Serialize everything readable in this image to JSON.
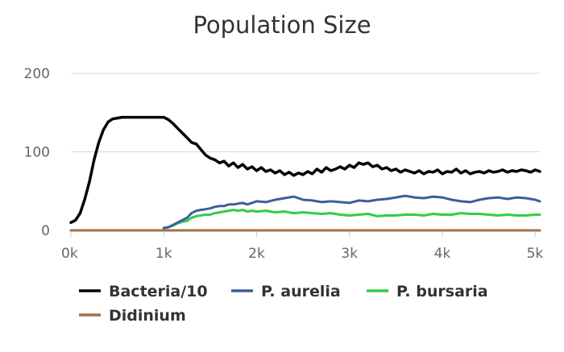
{
  "chart_data": {
    "type": "line",
    "title": "Population Size",
    "xlabel": "",
    "ylabel": "",
    "xlim": [
      0,
      5050
    ],
    "ylim": [
      0,
      200
    ],
    "x_ticks": [
      {
        "value": 0,
        "label": "0k"
      },
      {
        "value": 1000,
        "label": "1k"
      },
      {
        "value": 2000,
        "label": "2k"
      },
      {
        "value": 3000,
        "label": "3k"
      },
      {
        "value": 4000,
        "label": "4k"
      },
      {
        "value": 5000,
        "label": "5k"
      }
    ],
    "y_ticks": [
      {
        "value": 0,
        "label": "0"
      },
      {
        "value": 100,
        "label": "100"
      },
      {
        "value": 200,
        "label": "200"
      }
    ],
    "grid": "horizontal",
    "legend_position": "bottom",
    "series": [
      {
        "name": "Bacteria/10",
        "color": "#000000",
        "x": [
          0,
          50,
          100,
          150,
          200,
          250,
          300,
          350,
          400,
          450,
          500,
          550,
          600,
          700,
          800,
          900,
          1000,
          1050,
          1100,
          1150,
          1200,
          1250,
          1300,
          1350,
          1400,
          1450,
          1500,
          1550,
          1600,
          1650,
          1700,
          1750,
          1800,
          1850,
          1900,
          1950,
          2000,
          2050,
          2100,
          2150,
          2200,
          2250,
          2300,
          2350,
          2400,
          2450,
          2500,
          2550,
          2600,
          2650,
          2700,
          2750,
          2800,
          2850,
          2900,
          2950,
          3000,
          3050,
          3100,
          3150,
          3200,
          3250,
          3300,
          3350,
          3400,
          3450,
          3500,
          3550,
          3600,
          3650,
          3700,
          3750,
          3800,
          3850,
          3900,
          3950,
          4000,
          4050,
          4100,
          4150,
          4200,
          4250,
          4300,
          4350,
          4400,
          4450,
          4500,
          4550,
          4600,
          4650,
          4700,
          4750,
          4800,
          4850,
          4900,
          4950,
          5000,
          5050
        ],
        "y": [
          10,
          13,
          22,
          40,
          62,
          90,
          112,
          128,
          138,
          142,
          143,
          144,
          144,
          144,
          144,
          144,
          144,
          141,
          136,
          130,
          124,
          118,
          112,
          110,
          103,
          96,
          92,
          90,
          86,
          88,
          82,
          86,
          80,
          84,
          78,
          81,
          76,
          80,
          75,
          77,
          73,
          76,
          71,
          74,
          70,
          73,
          71,
          75,
          72,
          78,
          74,
          80,
          76,
          78,
          81,
          78,
          83,
          80,
          86,
          84,
          86,
          81,
          83,
          78,
          80,
          76,
          78,
          74,
          77,
          75,
          73,
          76,
          72,
          75,
          74,
          77,
          72,
          75,
          74,
          78,
          73,
          76,
          72,
          74,
          75,
          73,
          76,
          74,
          75,
          77,
          74,
          76,
          75,
          77,
          76,
          74,
          77,
          75
        ]
      },
      {
        "name": "P. aurelia",
        "color": "#3a5f9e",
        "x": [
          1000,
          1050,
          1100,
          1150,
          1200,
          1250,
          1300,
          1350,
          1400,
          1450,
          1500,
          1550,
          1600,
          1650,
          1700,
          1750,
          1800,
          1850,
          1900,
          1950,
          2000,
          2100,
          2200,
          2300,
          2400,
          2500,
          2600,
          2700,
          2800,
          2900,
          3000,
          3100,
          3200,
          3300,
          3400,
          3500,
          3600,
          3700,
          3800,
          3900,
          4000,
          4100,
          4200,
          4300,
          4400,
          4500,
          4600,
          4700,
          4800,
          4900,
          5000,
          5050
        ],
        "y": [
          3,
          4,
          7,
          10,
          13,
          16,
          22,
          25,
          26,
          27,
          28,
          30,
          31,
          31,
          33,
          33,
          34,
          35,
          33,
          35,
          37,
          36,
          39,
          41,
          43,
          39,
          38,
          36,
          37,
          36,
          35,
          38,
          37,
          39,
          40,
          42,
          44,
          42,
          41,
          43,
          42,
          39,
          37,
          36,
          39,
          41,
          42,
          40,
          42,
          41,
          39,
          37
        ]
      },
      {
        "name": "P. bursaria",
        "color": "#33cc44",
        "x": [
          1000,
          1050,
          1100,
          1150,
          1200,
          1250,
          1300,
          1350,
          1400,
          1450,
          1500,
          1550,
          1600,
          1650,
          1700,
          1750,
          1800,
          1850,
          1900,
          1950,
          2000,
          2100,
          2200,
          2300,
          2400,
          2500,
          2600,
          2700,
          2800,
          2900,
          3000,
          3100,
          3200,
          3300,
          3400,
          3500,
          3600,
          3700,
          3800,
          3900,
          4000,
          4100,
          4200,
          4300,
          4400,
          4500,
          4600,
          4700,
          4800,
          4900,
          5000,
          5050
        ],
        "y": [
          3,
          4,
          6,
          9,
          11,
          12,
          16,
          18,
          19,
          20,
          20,
          22,
          23,
          24,
          25,
          26,
          25,
          26,
          24,
          25,
          24,
          25,
          23,
          24,
          22,
          23,
          22,
          21,
          22,
          20,
          19,
          20,
          21,
          18,
          19,
          19,
          20,
          20,
          19,
          21,
          20,
          20,
          22,
          21,
          21,
          20,
          19,
          20,
          19,
          19,
          20,
          20
        ]
      },
      {
        "name": "Didinium",
        "color": "#a0714d",
        "x": [
          0,
          5050
        ],
        "y": [
          0,
          0
        ]
      }
    ]
  }
}
